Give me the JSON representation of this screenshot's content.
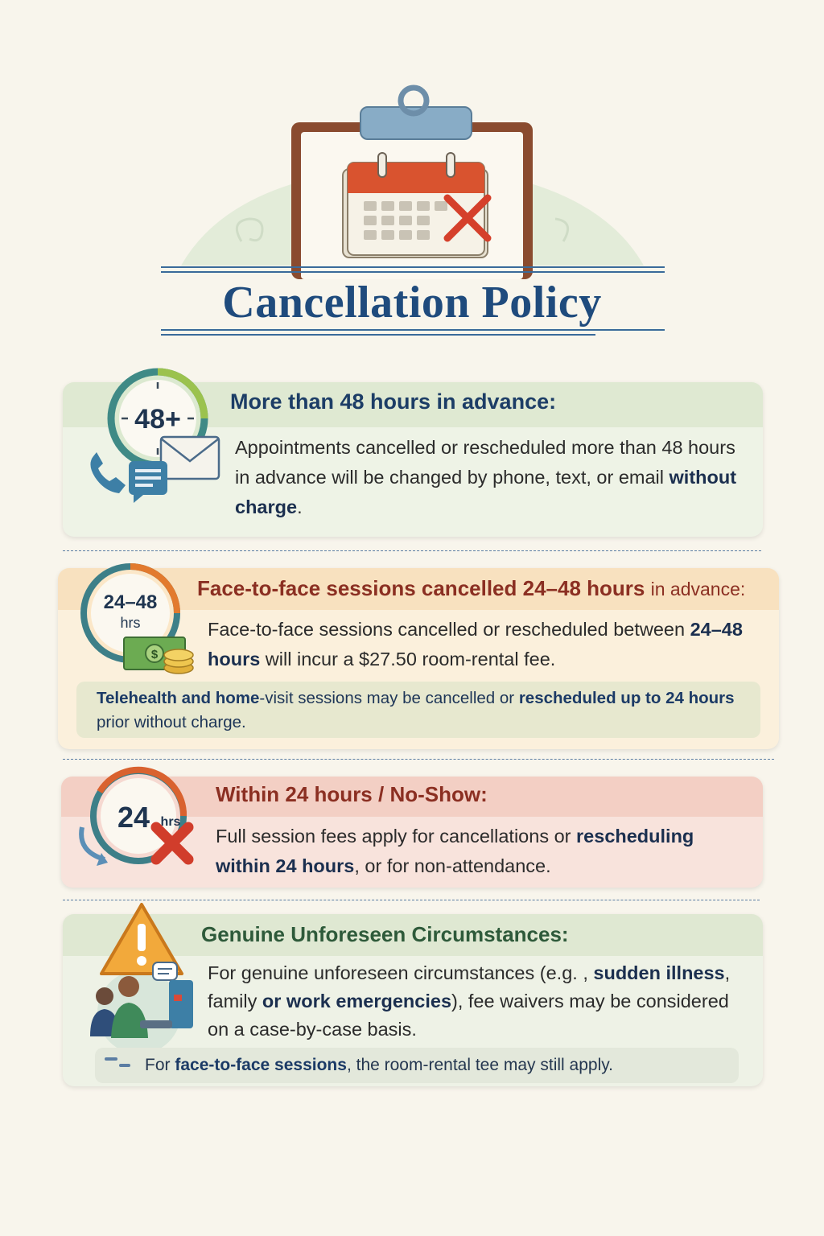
{
  "title": "Cancellation Policy",
  "colors": {
    "title_blue": "#1f4b7d",
    "section1_green": "#e5efdc",
    "section2_peach": "#fbe8c9",
    "section3_rose": "#f5d7cf",
    "section4_sage": "#e6eddb",
    "accent_red": "#d24a33",
    "accent_orange": "#e7742f"
  },
  "sections": [
    {
      "icon_name": "clock-48-with-mail-phone-chat-icon",
      "clock_label": "48+",
      "heading": "More than 48 hours in advance:",
      "body_parts": [
        "Appointments cancelled or rescheduled more than 48 hours in advance will be changed by phone, text, or email ",
        "without charge",
        "."
      ]
    },
    {
      "icon_name": "clock-24-48-with-money-icon",
      "clock_label_top": "24–48",
      "clock_label_bottom": "hrs",
      "heading_main": "Face-to-face sessions cancelled 24–48 hours",
      "heading_tail": "in advance:",
      "body_parts": [
        "Face-to-face sessions cancelled or rescheduled between ",
        "24–48 hours",
        " will incur a $27.50 room-rental fee."
      ],
      "note_parts": [
        "Telehealth and home",
        "-visit sessions may be cancelled or ",
        "rescheduled up to 24 hours",
        " prior without charge."
      ]
    },
    {
      "icon_name": "clock-24-with-red-x-icon",
      "clock_label": "24",
      "clock_label_small": "hrs",
      "heading": "Within 24 hours / No-Show:",
      "body_parts": [
        "Full session fees apply for cancellations or ",
        "rescheduling within 24 hours",
        ", or for non-attendance."
      ]
    },
    {
      "icon_name": "warning-and-people-icon",
      "heading": "Genuine Unforeseen Circumstances:",
      "body_parts": [
        "For genuine unforeseen circumstances (e.g. , ",
        "sudden illness",
        ", family ",
        "or work emergencies",
        "), fee waivers may be considered on a case-by-case basis."
      ],
      "note_parts": [
        "For ",
        "face-to-face sessions",
        ", the room-rental tee may still apply."
      ]
    }
  ]
}
